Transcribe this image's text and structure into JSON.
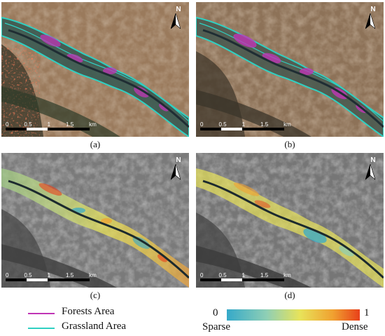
{
  "panels": [
    {
      "id": "a",
      "label": "(a)",
      "kind": "classified-contrast"
    },
    {
      "id": "b",
      "label": "(b)",
      "kind": "classified"
    },
    {
      "id": "c",
      "label": "(c)",
      "kind": "density"
    },
    {
      "id": "d",
      "label": "(d)",
      "kind": "density"
    }
  ],
  "north_arrow": {
    "letter": "N"
  },
  "scale_bar": {
    "ticks": [
      "0",
      "0.5",
      "1",
      "1.5"
    ],
    "unit": "km"
  },
  "legend": {
    "forests": {
      "label": "Forests Area",
      "color": "#c035b5"
    },
    "grassland": {
      "label": "Grassland Area",
      "color": "#2fd0c2"
    }
  },
  "colorbar": {
    "min_label": "0",
    "max_label": "1",
    "left_caption": "Sparse",
    "right_caption": "Dense",
    "stops": [
      "#35a9c9",
      "#8fcfb5",
      "#e8e35a",
      "#f0a030",
      "#e8401a"
    ]
  }
}
